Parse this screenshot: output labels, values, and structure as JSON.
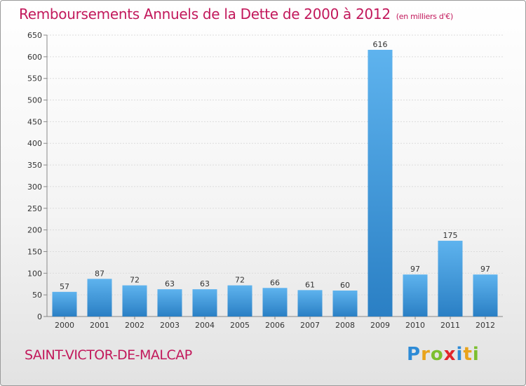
{
  "title": "Remboursements Annuels de la Dette de 2000 à 2012",
  "unit_label": "(en milliers d'€)",
  "location": "SAINT-VICTOR-DE-MALCAP",
  "brand": {
    "letters": [
      "P",
      "r",
      "o",
      "x",
      "i",
      "t",
      "i"
    ],
    "colors": [
      "#2e8bd6",
      "#e9a31b",
      "#7cbf2f",
      "#e2252b",
      "#2e8bd6",
      "#e9a31b",
      "#7cbf2f"
    ]
  },
  "colors": {
    "bar_light": "#5eb3ee",
    "bar_dark": "#2a7fc4",
    "title": "#c2185b"
  },
  "chart_data": {
    "type": "bar",
    "title": "Remboursements Annuels de la Dette de 2000 à 2012",
    "subtitle": "(en milliers d'€)",
    "xlabel": "",
    "ylabel": "",
    "categories": [
      "2000",
      "2001",
      "2002",
      "2003",
      "2004",
      "2005",
      "2006",
      "2007",
      "2008",
      "2009",
      "2010",
      "2011",
      "2012"
    ],
    "values": [
      57,
      87,
      72,
      63,
      63,
      72,
      66,
      61,
      60,
      616,
      97,
      175,
      97
    ],
    "ylim": [
      0,
      650
    ],
    "yticks": [
      0,
      50,
      100,
      150,
      200,
      250,
      300,
      350,
      400,
      450,
      500,
      550,
      600,
      650
    ],
    "grid": true,
    "legend": "none"
  }
}
